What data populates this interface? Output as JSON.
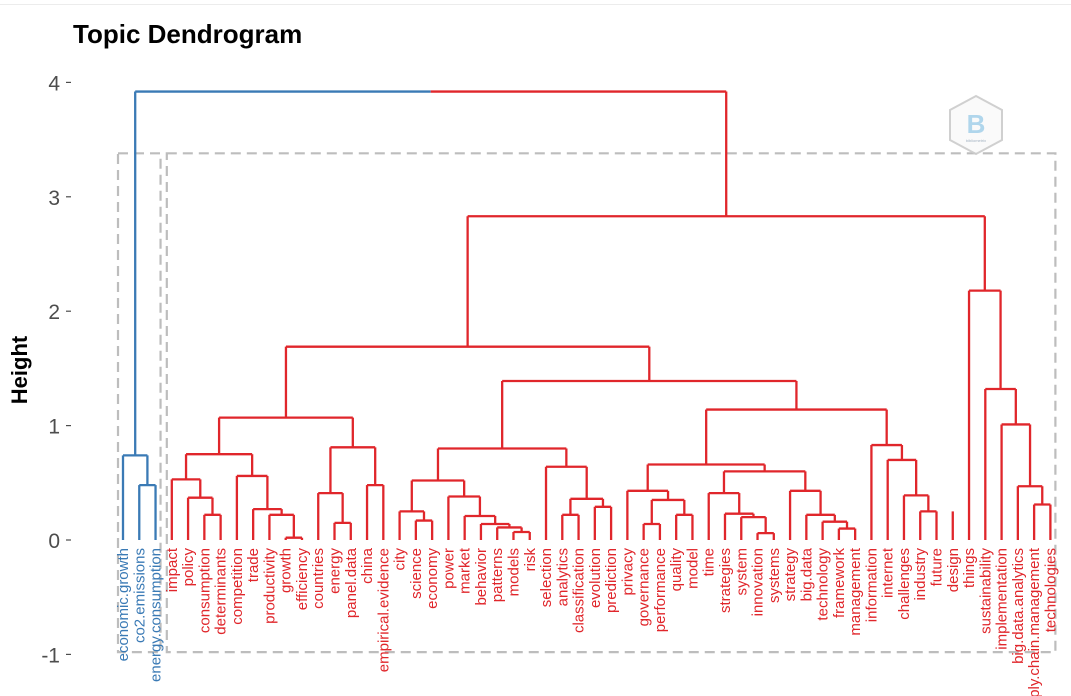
{
  "chart_data": {
    "type": "dendrogram",
    "title": "Topic Dendrogram",
    "ylabel": "Height",
    "ylim": [
      -1,
      4
    ],
    "yticks": [
      "-1",
      "0",
      "1",
      "2",
      "3",
      "4"
    ],
    "colors": {
      "cluster_1": "#3a7ab5",
      "cluster_2": "#e0262b",
      "box": "#bdbdbd",
      "tick": "#4d4d4d"
    },
    "leaves": [
      {
        "label": "economic.growth",
        "cluster": 1
      },
      {
        "label": "co2.emissions",
        "cluster": 1
      },
      {
        "label": "energy.consumption",
        "cluster": 1
      },
      {
        "label": "impact",
        "cluster": 2
      },
      {
        "label": "policy",
        "cluster": 2
      },
      {
        "label": "consumption",
        "cluster": 2
      },
      {
        "label": "determinants",
        "cluster": 2
      },
      {
        "label": "competition",
        "cluster": 2
      },
      {
        "label": "trade",
        "cluster": 2
      },
      {
        "label": "productivity",
        "cluster": 2
      },
      {
        "label": "growth",
        "cluster": 2
      },
      {
        "label": "efficiency",
        "cluster": 2
      },
      {
        "label": "countries",
        "cluster": 2
      },
      {
        "label": "energy",
        "cluster": 2
      },
      {
        "label": "panel.data",
        "cluster": 2
      },
      {
        "label": "china",
        "cluster": 2
      },
      {
        "label": "empirical.evidence",
        "cluster": 2
      },
      {
        "label": "city",
        "cluster": 2
      },
      {
        "label": "science",
        "cluster": 2
      },
      {
        "label": "economy",
        "cluster": 2
      },
      {
        "label": "power",
        "cluster": 2
      },
      {
        "label": "market",
        "cluster": 2
      },
      {
        "label": "behavior",
        "cluster": 2
      },
      {
        "label": "patterns",
        "cluster": 2
      },
      {
        "label": "models",
        "cluster": 2
      },
      {
        "label": "risk",
        "cluster": 2
      },
      {
        "label": "selection",
        "cluster": 2
      },
      {
        "label": "analytics",
        "cluster": 2
      },
      {
        "label": "classification",
        "cluster": 2
      },
      {
        "label": "evolution",
        "cluster": 2
      },
      {
        "label": "prediction",
        "cluster": 2
      },
      {
        "label": "privacy",
        "cluster": 2
      },
      {
        "label": "governance",
        "cluster": 2
      },
      {
        "label": "performance",
        "cluster": 2
      },
      {
        "label": "quality",
        "cluster": 2
      },
      {
        "label": "model",
        "cluster": 2
      },
      {
        "label": "time",
        "cluster": 2
      },
      {
        "label": "strategies",
        "cluster": 2
      },
      {
        "label": "system",
        "cluster": 2
      },
      {
        "label": "innovation",
        "cluster": 2
      },
      {
        "label": "systems",
        "cluster": 2
      },
      {
        "label": "strategy",
        "cluster": 2
      },
      {
        "label": "big.data",
        "cluster": 2
      },
      {
        "label": "technology",
        "cluster": 2
      },
      {
        "label": "framework",
        "cluster": 2
      },
      {
        "label": "management",
        "cluster": 2
      },
      {
        "label": "information",
        "cluster": 2
      },
      {
        "label": "internet",
        "cluster": 2
      },
      {
        "label": "challenges",
        "cluster": 2
      },
      {
        "label": "industry",
        "cluster": 2
      },
      {
        "label": "future",
        "cluster": 2
      },
      {
        "label": "design",
        "cluster": 2
      },
      {
        "label": "things",
        "cluster": 2
      },
      {
        "label": "sustainability",
        "cluster": 2
      },
      {
        "label": "implementation",
        "cluster": 2
      },
      {
        "label": "big.data.analytics",
        "cluster": 2
      },
      {
        "label": "supply.chain.management",
        "cluster": 2
      },
      {
        "label": "technologies",
        "cluster": 2
      }
    ],
    "merges": [
      [
        0,
        1,
        4,
        1,
        3.92
      ],
      [
        1,
        0,
        0,
        1,
        0.74
      ],
      [
        2,
        0,
        0,
        2,
        0.48
      ],
      [
        3,
        5,
        58,
        2,
        3.92
      ],
      [
        5,
        6,
        51,
        2,
        2.83
      ],
      [
        6,
        7,
        11,
        2,
        1.69
      ],
      [
        7,
        8,
        10,
        2,
        1.07
      ],
      [
        8,
        9,
        10,
        2,
        0.75
      ],
      [
        9,
        3,
        12,
        2,
        0.53
      ],
      [
        12,
        4,
        13,
        2,
        0.37
      ],
      [
        13,
        5,
        6,
        2,
        0.22
      ],
      [
        10,
        14,
        17,
        2,
        0.56
      ],
      [
        14,
        7,
        15,
        2,
        0.27
      ],
      [
        15,
        8,
        16,
        2,
        0.22
      ],
      [
        16,
        9,
        10,
        2,
        0.02
      ],
      [
        11,
        18,
        20,
        2,
        0.81
      ],
      [
        18,
        11,
        19,
        2,
        0.41
      ],
      [
        19,
        12,
        13,
        2,
        0.15
      ],
      [
        20,
        14,
        15,
        2,
        0.48
      ],
      [
        21,
        22,
        24,
        2,
        1.39
      ],
      [
        22,
        23,
        27,
        2,
        0.8
      ],
      [
        23,
        25,
        26,
        2,
        0.52
      ],
      [
        25,
        17,
        28,
        2,
        0.25
      ],
      [
        28,
        18,
        19,
        2,
        0.17
      ],
      [
        26,
        20,
        29,
        2,
        0.38
      ],
      [
        29,
        21,
        30,
        2,
        0.21
      ],
      [
        30,
        22,
        31,
        2,
        0.14
      ],
      [
        31,
        23,
        32,
        2,
        0.11
      ],
      [
        32,
        24,
        25,
        2,
        0.07
      ],
      [
        27,
        26,
        33,
        2,
        0.64
      ],
      [
        33,
        27,
        34,
        2,
        0.36
      ],
      [
        34,
        28,
        35,
        2,
        0.22
      ],
      [
        35,
        29,
        30,
        2,
        0.29
      ],
      [
        24,
        36,
        44,
        2,
        1.14
      ],
      [
        36,
        37,
        42,
        2,
        0.66
      ],
      [
        37,
        31,
        38,
        2,
        0.43
      ],
      [
        38,
        32,
        39,
        2,
        0.35
      ],
      [
        39,
        33,
        40,
        2,
        0.14
      ],
      [
        40,
        34,
        35,
        2,
        0.22
      ],
      [
        42,
        41,
        43,
        2,
        0.6
      ],
      [
        41,
        36,
        46,
        2,
        0.41
      ],
      [
        46,
        37,
        47,
        2,
        0.23
      ],
      [
        47,
        38,
        48,
        2,
        0.2
      ],
      [
        48,
        39,
        40,
        2,
        0.06
      ],
      [
        43,
        41,
        49,
        2,
        0.43
      ],
      [
        49,
        42,
        50,
        2,
        0.22
      ],
      [
        50,
        43,
        52,
        2,
        0.16
      ],
      [
        52,
        44,
        45,
        2,
        0.1
      ],
      [
        44,
        46,
        53,
        2,
        0.83
      ],
      [
        53,
        47,
        54,
        2,
        0.7
      ],
      [
        54,
        48,
        55,
        2,
        0.39
      ],
      [
        55,
        49,
        50,
        2,
        0.25
      ],
      [
        51,
        51,
        56,
        2,
        2.18
      ],
      [
        56,
        52,
        57,
        2,
        1.32
      ],
      [
        57,
        53,
        59,
        2,
        1.01
      ],
      [
        59,
        54,
        60,
        2,
        0.47
      ],
      [
        60,
        55,
        56,
        2,
        0.31
      ]
    ],
    "cluster_boxes": [
      {
        "first": 0,
        "last": 2,
        "ymin": -0.98,
        "ymax": 3.38,
        "cluster": 1
      },
      {
        "first": 3,
        "last": 57,
        "ymin": -0.98,
        "ymax": 3.38,
        "cluster": 2
      }
    ]
  },
  "watermark": {
    "text": "bibliometrix"
  }
}
